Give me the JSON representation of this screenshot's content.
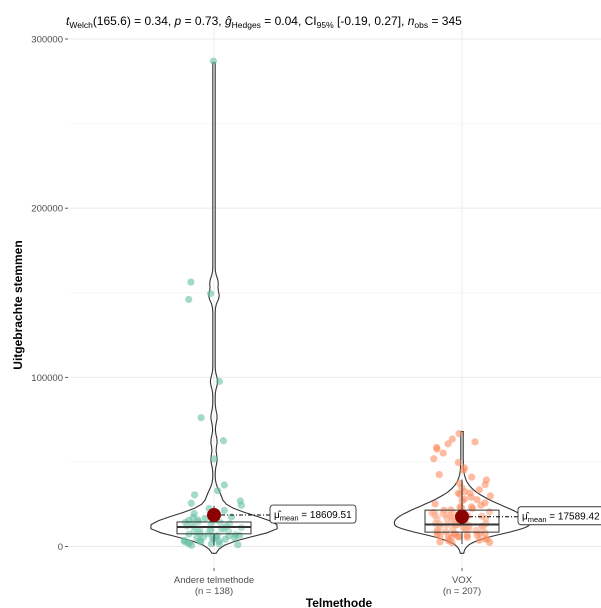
{
  "chart_data": {
    "type": "violin-box-scatter",
    "subtitle": {
      "t_sym": "t",
      "t_sub": "Welch",
      "t_val": "(165.6) = 0.34, ",
      "p_sym": "p",
      "p_val": " = 0.73, ",
      "g_sym": "ĝ",
      "g_sub": "Hedges",
      "g_val": " = 0.04, CI",
      "ci_sub": "95%",
      "ci_val": " [-0.19, 0.27], ",
      "n_sym": "n",
      "n_sub": "obs",
      "n_val": " = 345"
    },
    "xlabel": "Telmethode",
    "ylabel": "Uitgebrachte stemmen",
    "ylim": [
      -20000,
      300000
    ],
    "yticks": [
      0,
      100000,
      200000,
      300000
    ],
    "ytick_labels": [
      "0",
      "100000",
      "200000",
      "300000"
    ],
    "groups": [
      {
        "name": "Andere telmethode",
        "n_label": "(n = 138)",
        "color": "#66C2A5",
        "mean": 18609.51,
        "mean_label_sym": "μ̂",
        "mean_label_sub": "mean",
        "mean_label_val": " = 18609.51",
        "box": {
          "q1": 7500,
          "median": 11500,
          "q3": 14500,
          "whisker_low": 500,
          "whisker_high": 24000
        },
        "violin_max": 286000,
        "points": [
          287000,
          156000,
          149500,
          146500,
          97500,
          76500,
          62000,
          51500,
          36000,
          33000,
          30000,
          27500,
          25500,
          24000,
          22500,
          21000,
          20000,
          19000,
          18000,
          17500,
          16500,
          16000,
          15000,
          14500,
          14000,
          13500,
          13000,
          12500,
          12000,
          11500,
          11000,
          10500,
          10000,
          9500,
          9000,
          8500,
          8000,
          7500,
          7000,
          6500,
          6000,
          5500,
          5000,
          4500,
          4000,
          3500,
          3000,
          2500,
          2000,
          1500,
          1000,
          800,
          13800,
          12200,
          10800,
          9200,
          8200,
          6800,
          5800,
          4800,
          3800,
          2800,
          1800,
          15500,
          17000,
          11200,
          9800,
          7200,
          5200,
          3200
        ]
      },
      {
        "name": "VOX",
        "n_label": "(n = 207)",
        "color": "#FC8D62",
        "mean": 17589.42,
        "mean_label_sym": "μ̂",
        "mean_label_sub": "mean",
        "mean_label_val": " = 17589.42",
        "box": {
          "q1": 8500,
          "median": 13000,
          "q3": 21500,
          "whisker_low": 1500,
          "whisker_high": 39500
        },
        "violin_max": 68000,
        "points": [
          67000,
          64000,
          62000,
          60500,
          59000,
          57000,
          55000,
          52000,
          49500,
          47000,
          45000,
          43000,
          41000,
          39500,
          38000,
          36500,
          35000,
          34000,
          33000,
          32000,
          31000,
          30000,
          29000,
          28000,
          27000,
          26000,
          25000,
          24000,
          23000,
          22000,
          21500,
          21000,
          20500,
          20000,
          19500,
          19000,
          18500,
          18000,
          17500,
          17000,
          16500,
          16000,
          15500,
          15000,
          14500,
          14000,
          13500,
          13000,
          12500,
          12000,
          11500,
          11000,
          10500,
          10000,
          9500,
          9000,
          8500,
          8000,
          7500,
          7000,
          6500,
          6000,
          5500,
          5000,
          4500,
          4000,
          3500,
          3000,
          2500,
          2000,
          14200,
          13200,
          12200,
          11200,
          10200,
          9200,
          8200,
          7200,
          6200,
          5200,
          4200,
          16200,
          18200,
          20200,
          24500,
          27500,
          30500,
          15800,
          12800,
          9800,
          6800,
          22500,
          19800,
          17800,
          11800,
          8800
        ]
      }
    ],
    "grid": true,
    "legend": "none"
  }
}
